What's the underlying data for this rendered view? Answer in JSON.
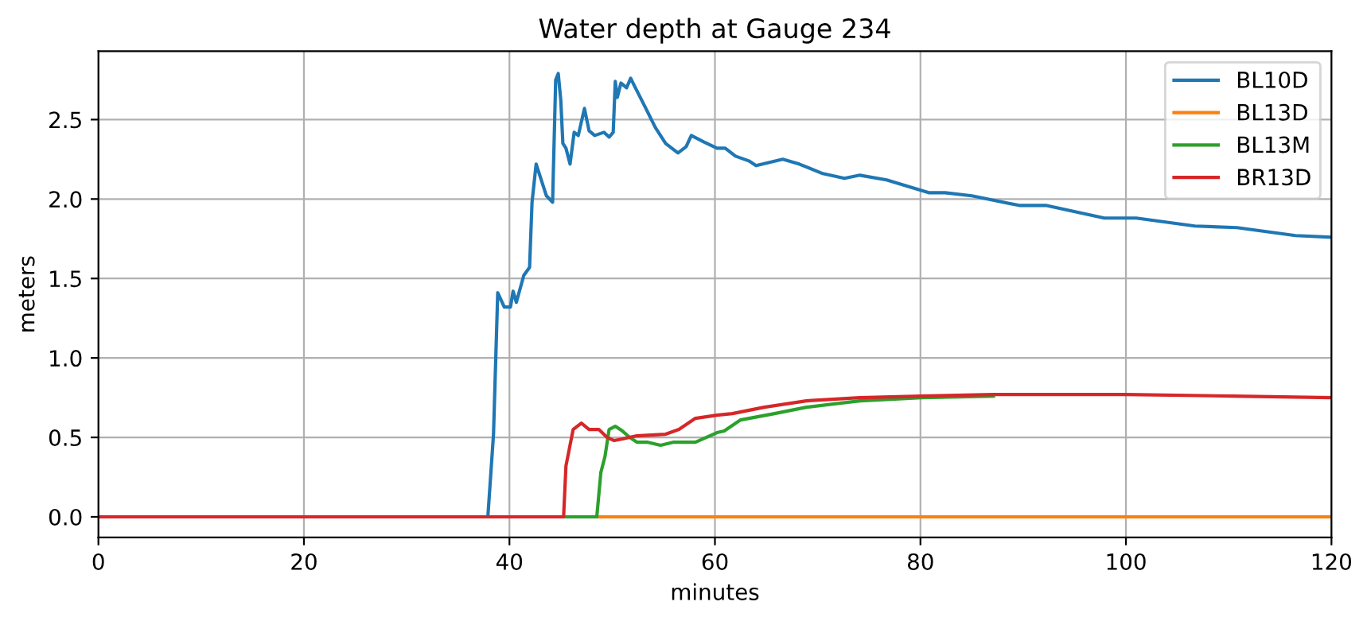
{
  "chart_data": {
    "type": "line",
    "title": "Water depth at Gauge 234",
    "xlabel": "minutes",
    "ylabel": "meters",
    "xlim": [
      0,
      120
    ],
    "xticks": [
      0,
      20,
      40,
      60,
      80,
      100,
      120
    ],
    "ylim": [
      -0.13,
      2.93
    ],
    "yticks": [
      {
        "value": 0,
        "label": "0.0"
      },
      0.5,
      {
        "value": 1,
        "label": "1.0"
      },
      1.5,
      {
        "value": 2,
        "label": "2.0"
      },
      2.5
    ],
    "grid": true,
    "legend": "top right",
    "series": [
      {
        "name": "BL10D",
        "color": "#1f77b4",
        "x": [
          0,
          37.9,
          38.45,
          38.86,
          39.5,
          40.1,
          40.36,
          40.67,
          41.4,
          41.96,
          42.2,
          42.6,
          43.1,
          43.6,
          44.2,
          44.5,
          44.75,
          45.0,
          45.2,
          45.5,
          45.9,
          46.3,
          46.7,
          47.3,
          47.75,
          48.3,
          49.2,
          49.7,
          50.1,
          50.3,
          50.5,
          50.85,
          51.4,
          51.8,
          52.1,
          53.2,
          54.2,
          55.2,
          56.4,
          57.2,
          57.7,
          58.9,
          60.2,
          61.0,
          62.0,
          63.3,
          64.0,
          66.6,
          68.2,
          70.5,
          72.6,
          74.1,
          76.7,
          80.8,
          82.4,
          85.0,
          89.6,
          92.2,
          97.9,
          101,
          106.7,
          110.8,
          116.5,
          120
        ],
        "values": [
          0,
          0,
          0.52,
          1.41,
          1.32,
          1.32,
          1.42,
          1.35,
          1.52,
          1.57,
          1.98,
          2.22,
          2.12,
          2.02,
          1.98,
          2.75,
          2.79,
          2.62,
          2.35,
          2.32,
          2.22,
          2.42,
          2.4,
          2.57,
          2.43,
          2.4,
          2.42,
          2.39,
          2.42,
          2.74,
          2.64,
          2.73,
          2.7,
          2.76,
          2.72,
          2.58,
          2.45,
          2.35,
          2.29,
          2.33,
          2.4,
          2.36,
          2.32,
          2.32,
          2.27,
          2.24,
          2.21,
          2.25,
          2.22,
          2.16,
          2.13,
          2.15,
          2.12,
          2.04,
          2.04,
          2.02,
          1.96,
          1.96,
          1.88,
          1.88,
          1.83,
          1.82,
          1.77,
          1.76
        ]
      },
      {
        "name": "BL13D",
        "color": "#ff7f0e",
        "x": [
          0,
          120
        ],
        "values": [
          0,
          0
        ]
      },
      {
        "name": "BL13M",
        "color": "#2ca02c",
        "x": [
          0,
          48.5,
          48.9,
          49.3,
          49.7,
          50.3,
          51.0,
          51.7,
          52.4,
          53.4,
          54.7,
          56.0,
          58.1,
          60.2,
          60.9,
          62.5,
          65.8,
          68.9,
          74.1,
          80.1,
          87.1
        ],
        "values": [
          0,
          0,
          0.28,
          0.38,
          0.55,
          0.57,
          0.54,
          0.5,
          0.47,
          0.47,
          0.45,
          0.47,
          0.47,
          0.53,
          0.54,
          0.61,
          0.65,
          0.69,
          0.73,
          0.75,
          0.76
        ]
      },
      {
        "name": "BR13D",
        "color": "#d62728",
        "x": [
          0,
          45.27,
          45.5,
          46.2,
          47.0,
          47.75,
          48.7,
          49.5,
          50.2,
          51.0,
          52.4,
          55.2,
          56.5,
          58.1,
          60.2,
          61.7,
          64.8,
          68.9,
          74.1,
          80.1,
          87.1,
          100,
          110.4,
          120
        ],
        "values": [
          0,
          0,
          0.32,
          0.55,
          0.59,
          0.55,
          0.55,
          0.5,
          0.48,
          0.49,
          0.51,
          0.52,
          0.55,
          0.62,
          0.64,
          0.65,
          0.69,
          0.73,
          0.75,
          0.76,
          0.77,
          0.77,
          0.76,
          0.75
        ]
      }
    ]
  }
}
